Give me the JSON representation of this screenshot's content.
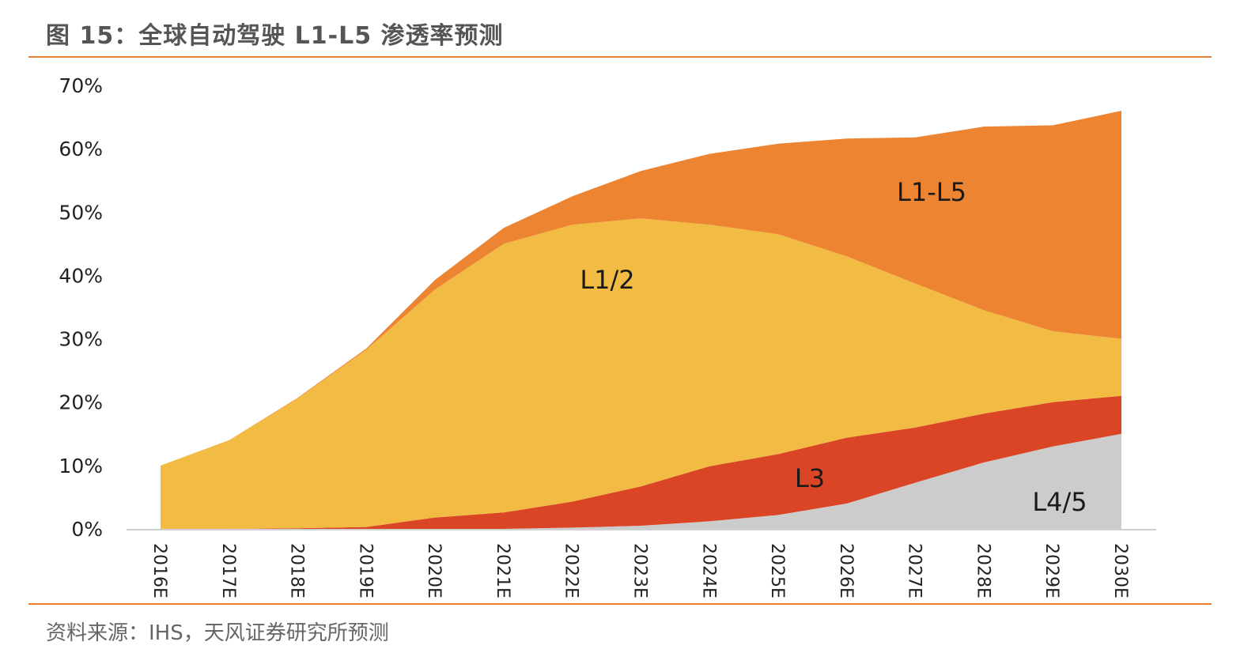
{
  "header": {
    "title": "图 15：全球自动驾驶 L1-L5 渗透率预测"
  },
  "footer": {
    "source": "资料来源：IHS，天风证券研究所预测"
  },
  "colors": {
    "rule": "#ED7D31",
    "L1-L5": "#ED8432",
    "L1/2": "#F2BB44",
    "L3": "#D94525",
    "L4/5": "#CCCCCC"
  },
  "chart_data": {
    "type": "area",
    "stacked": true,
    "title": "",
    "xlabel": "",
    "ylabel": "",
    "ylim": [
      0,
      70
    ],
    "y_ticks": [
      "0%",
      "10%",
      "20%",
      "30%",
      "40%",
      "50%",
      "60%",
      "70%"
    ],
    "categories": [
      "2016E",
      "2017E",
      "2018E",
      "2019E",
      "2020E",
      "2021E",
      "2022E",
      "2023E",
      "2024E",
      "2025E",
      "2026E",
      "2027E",
      "2028E",
      "2029E",
      "2030E"
    ],
    "series": [
      {
        "name": "L4/5",
        "values": [
          0,
          0,
          0,
          0,
          0,
          0,
          0.2,
          0.5,
          1.2,
          2.2,
          4,
          7.3,
          10.5,
          13,
          15
        ]
      },
      {
        "name": "L3",
        "values": [
          0,
          0,
          0.1,
          0.3,
          1.8,
          2.6,
          4.1,
          6.2,
          8.7,
          9.6,
          10.4,
          8.7,
          7.7,
          7,
          6
        ]
      },
      {
        "name": "L1/2",
        "values": [
          10,
          14,
          20.5,
          28,
          36,
          42.4,
          43.7,
          42.3,
          38.1,
          34.7,
          28.6,
          22.7,
          16.3,
          11.2,
          9
        ]
      },
      {
        "name": "L1-L5",
        "values": [
          0,
          0,
          0.1,
          0.2,
          1.5,
          2.5,
          4.5,
          7.5,
          11.2,
          14.3,
          18.6,
          23.1,
          29,
          32.5,
          36
        ]
      }
    ],
    "grid": false,
    "legend": "none"
  }
}
